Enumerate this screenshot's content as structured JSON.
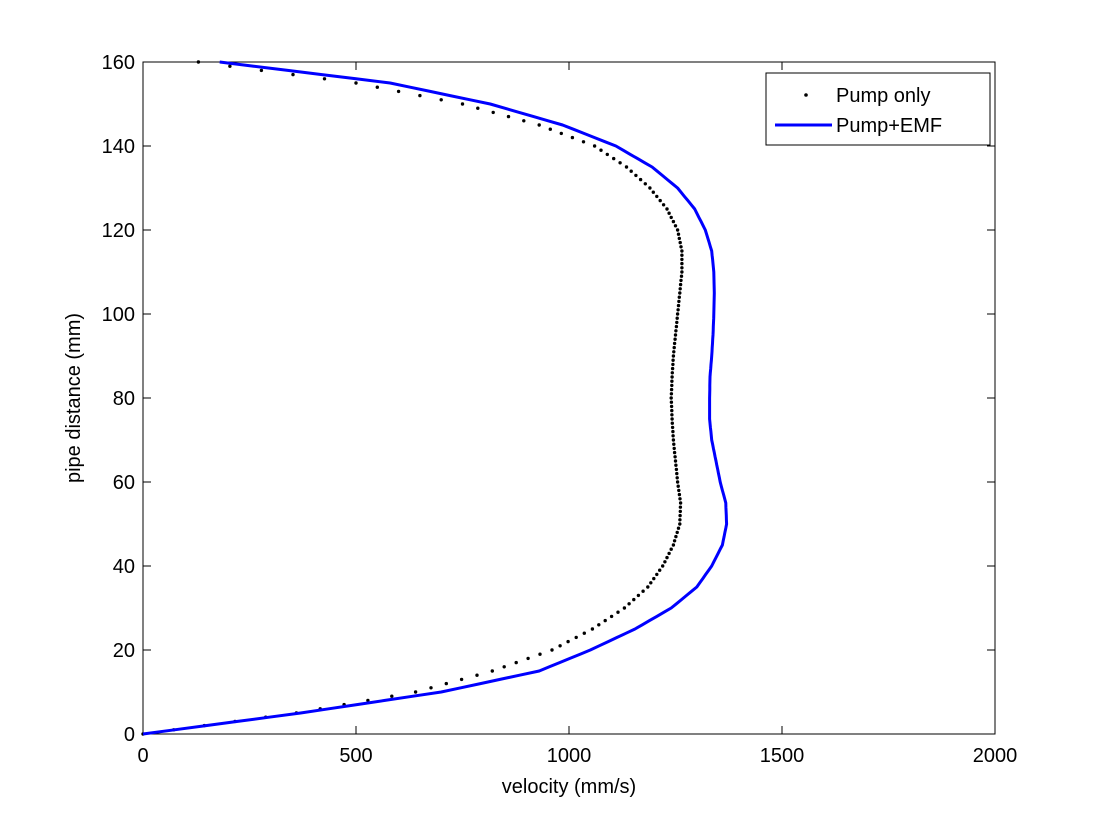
{
  "chart_data": {
    "type": "line",
    "title": "",
    "xlabel": "velocity (mm/s)",
    "ylabel": "pipe distance (mm)",
    "xlim": [
      0,
      2000
    ],
    "ylim": [
      0,
      160
    ],
    "xticks": [
      0,
      500,
      1000,
      1500,
      2000
    ],
    "yticks": [
      0,
      20,
      40,
      60,
      80,
      100,
      120,
      140,
      160
    ],
    "grid": false,
    "legend_position": "top-right",
    "series": [
      {
        "name": "Pump only",
        "style": "dots",
        "color": "#000000",
        "y": [
          0,
          5,
          10,
          15,
          20,
          25,
          30,
          35,
          40,
          45,
          50,
          55,
          60,
          65,
          70,
          75,
          80,
          85,
          90,
          95,
          100,
          105,
          110,
          115,
          120,
          125,
          130,
          135,
          140,
          145,
          150,
          155,
          160
        ],
        "x": [
          0,
          360,
          640,
          820,
          960,
          1055,
          1130,
          1185,
          1220,
          1245,
          1260,
          1262,
          1255,
          1250,
          1245,
          1242,
          1240,
          1242,
          1245,
          1250,
          1255,
          1260,
          1265,
          1265,
          1255,
          1230,
          1190,
          1135,
          1060,
          930,
          750,
          500,
          130
        ]
      },
      {
        "name": "Pump+EMF",
        "style": "line",
        "color": "#0000ff",
        "y": [
          0,
          5,
          10,
          15,
          20,
          25,
          30,
          35,
          40,
          45,
          50,
          55,
          60,
          65,
          70,
          75,
          80,
          85,
          90,
          95,
          100,
          105,
          110,
          115,
          120,
          125,
          130,
          135,
          140,
          145,
          150,
          155,
          160
        ],
        "x": [
          0,
          370,
          700,
          930,
          1050,
          1155,
          1240,
          1300,
          1335,
          1360,
          1370,
          1368,
          1355,
          1345,
          1335,
          1330,
          1330,
          1331,
          1335,
          1338,
          1340,
          1341,
          1340,
          1335,
          1320,
          1295,
          1255,
          1195,
          1110,
          985,
          815,
          580,
          180
        ]
      }
    ]
  },
  "legend": {
    "items": [
      {
        "label": "Pump only"
      },
      {
        "label": "Pump+EMF"
      }
    ]
  },
  "axes": {
    "xlabel": "velocity (mm/s)",
    "ylabel": "pipe distance (mm)"
  }
}
